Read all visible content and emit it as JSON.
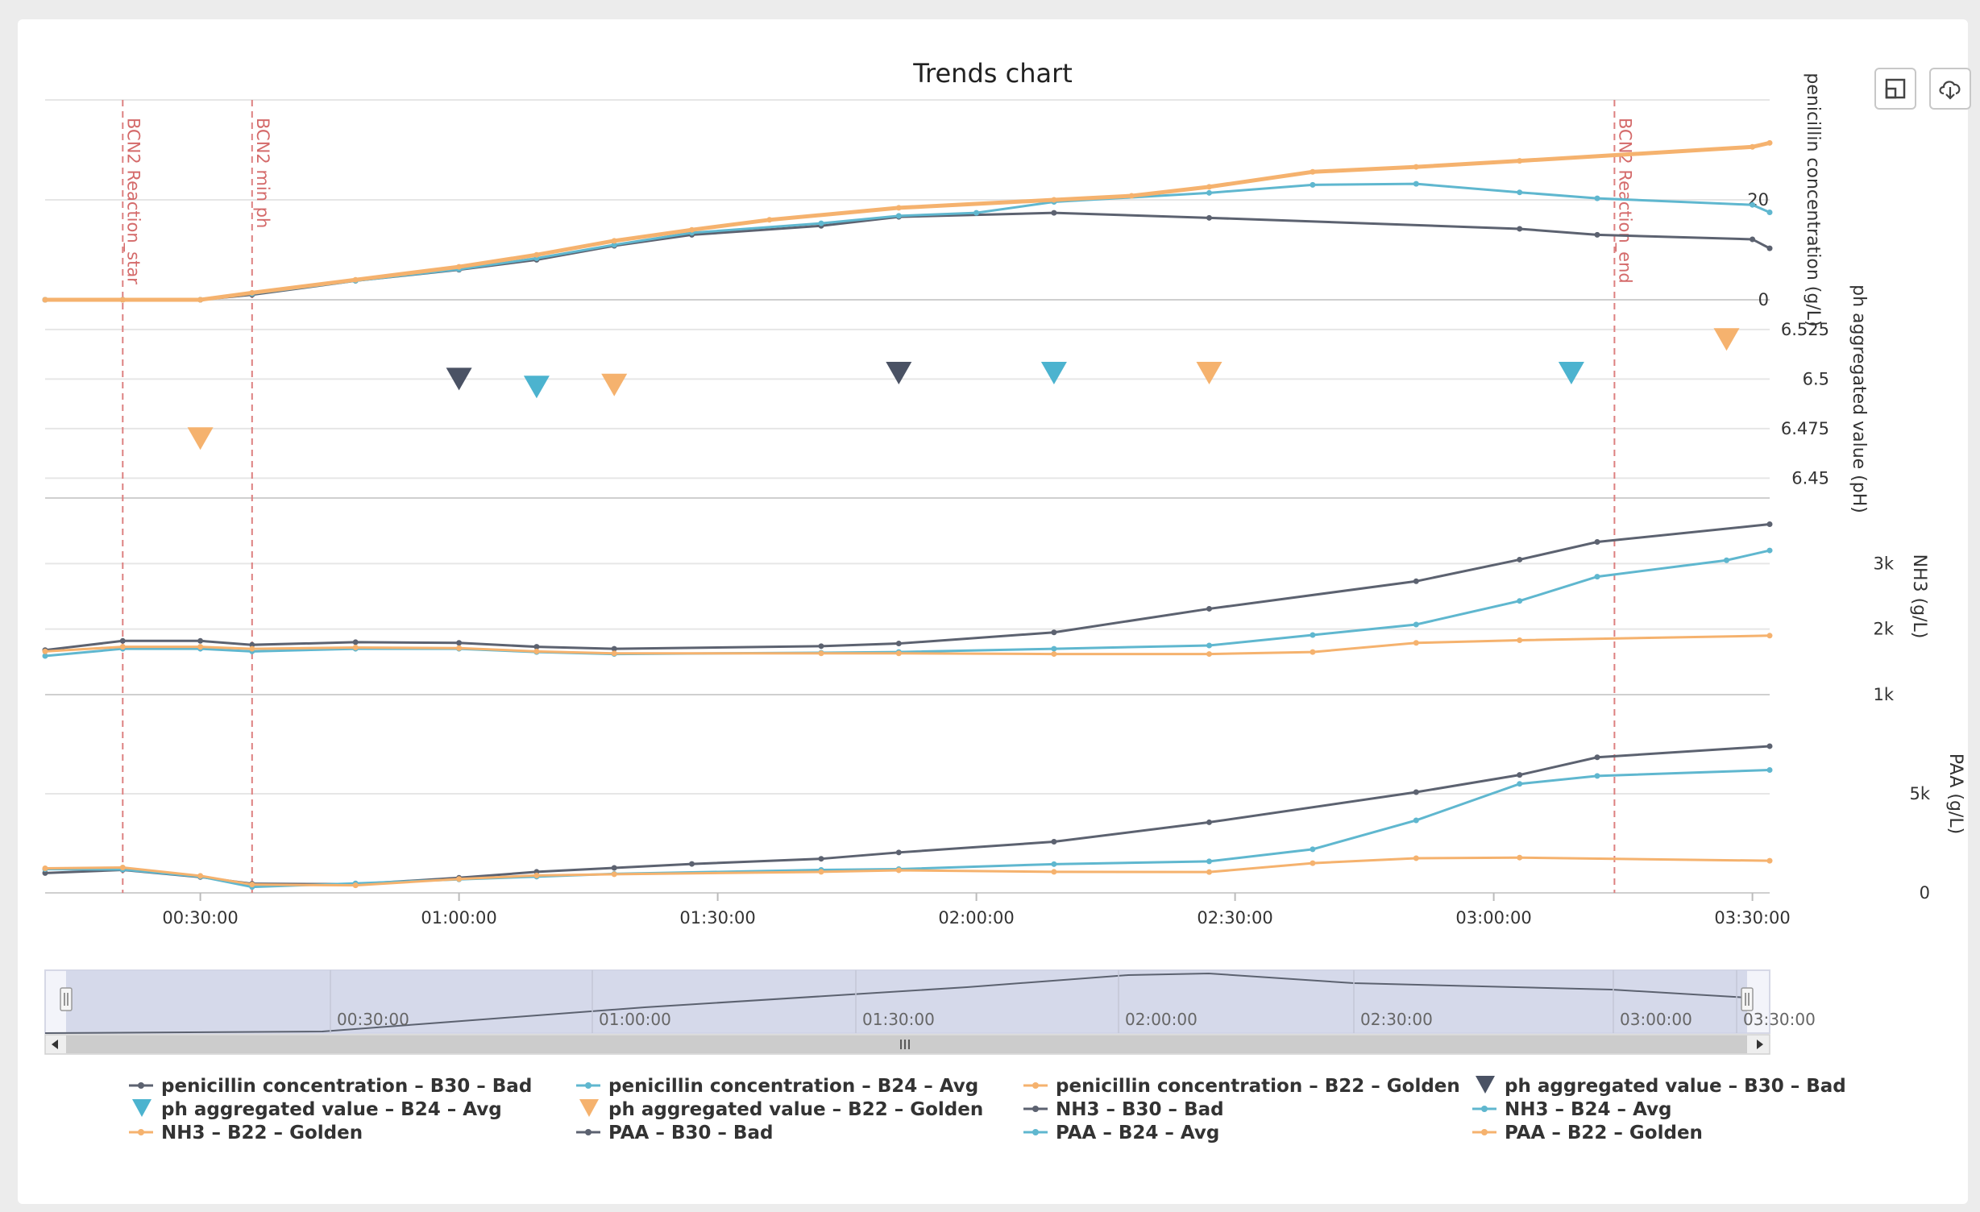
{
  "chart_data": {
    "type": "line",
    "title": "Trends chart",
    "x_range": [
      "00:12:00",
      "03:32:00"
    ],
    "x_ticks": [
      "00:30:00",
      "01:00:00",
      "01:30:00",
      "02:00:00",
      "02:30:00",
      "03:00:00",
      "03:30:00"
    ],
    "plot_bands": [
      {
        "label": "BCN2 Reaction_star",
        "x": "00:21:00"
      },
      {
        "label": "BCN2 min ph",
        "x": "00:36:00"
      },
      {
        "label": "BCN2 Reaction_end",
        "x": "03:14:00"
      }
    ],
    "panes": [
      {
        "id": "pen",
        "ylabel": "penicillin concentration (g/L)",
        "ylim": [
          0,
          40
        ],
        "ticks": [
          {
            "v": 0,
            "label": "0"
          },
          {
            "v": 20,
            "label": "20"
          }
        ]
      },
      {
        "id": "ph",
        "ylabel": "ph aggregated value (pH)",
        "ylim": [
          6.44,
          6.54
        ],
        "ticks": [
          {
            "v": 6.45,
            "label": "6.45"
          },
          {
            "v": 6.475,
            "label": "6.475"
          },
          {
            "v": 6.5,
            "label": "6.5"
          },
          {
            "v": 6.525,
            "label": "6.525"
          }
        ]
      },
      {
        "id": "nh3",
        "ylabel": "NH3 (g/L)",
        "ylim": [
          1000,
          4000
        ],
        "ticks": [
          {
            "v": 1000,
            "label": "1k"
          },
          {
            "v": 2000,
            "label": "2k"
          },
          {
            "v": 3000,
            "label": "3k"
          }
        ]
      },
      {
        "id": "paa",
        "ylabel": "PAA (g/L)",
        "ylim": [
          0,
          10000
        ],
        "ticks": [
          {
            "v": 0,
            "label": "0"
          },
          {
            "v": 5000,
            "label": "5k"
          }
        ]
      }
    ],
    "series": [
      {
        "name": "penicillin concentration – B30 – Bad",
        "pane": "pen",
        "kind": "line",
        "color": "#5c6270",
        "points": [
          [
            "00:12",
            0
          ],
          [
            "00:21",
            0
          ],
          [
            "00:30",
            0
          ],
          [
            "00:36",
            1
          ],
          [
            "00:48",
            3.8
          ],
          [
            "01:00",
            6
          ],
          [
            "01:09",
            8
          ],
          [
            "01:18",
            10.8
          ],
          [
            "01:27",
            13
          ],
          [
            "01:42",
            14.8
          ],
          [
            "01:51",
            16.6
          ],
          [
            "02:09",
            17.4
          ],
          [
            "02:27",
            16.4
          ],
          [
            "03:03",
            14.2
          ],
          [
            "03:12",
            13
          ],
          [
            "03:30",
            12.1
          ],
          [
            "03:32",
            10.3
          ]
        ]
      },
      {
        "name": "penicillin concentration – B24 – Avg",
        "pane": "pen",
        "kind": "line",
        "color": "#5fb7cf",
        "points": [
          [
            "00:12",
            0
          ],
          [
            "00:21",
            0
          ],
          [
            "00:30",
            0
          ],
          [
            "00:36",
            1.2
          ],
          [
            "00:48",
            3.8
          ],
          [
            "01:00",
            6.1
          ],
          [
            "01:09",
            8.3
          ],
          [
            "01:18",
            11
          ],
          [
            "01:27",
            13.4
          ],
          [
            "01:42",
            15.3
          ],
          [
            "01:51",
            16.8
          ],
          [
            "02:00",
            17.4
          ],
          [
            "02:09",
            19.6
          ],
          [
            "02:27",
            21.4
          ],
          [
            "02:39",
            23
          ],
          [
            "02:51",
            23.2
          ],
          [
            "03:03",
            21.5
          ],
          [
            "03:12",
            20.3
          ],
          [
            "03:30",
            19
          ],
          [
            "03:32",
            17.5
          ]
        ]
      },
      {
        "name": "penicillin concentration – B22 – Golden",
        "pane": "pen",
        "kind": "line",
        "color": "#f5b26e",
        "points": [
          [
            "00:12",
            0
          ],
          [
            "00:21",
            0
          ],
          [
            "00:30",
            0
          ],
          [
            "00:36",
            1.4
          ],
          [
            "00:48",
            4
          ],
          [
            "01:00",
            6.6
          ],
          [
            "01:09",
            9
          ],
          [
            "01:18",
            11.8
          ],
          [
            "01:27",
            14
          ],
          [
            "01:36",
            16
          ],
          [
            "01:51",
            18.4
          ],
          [
            "02:09",
            20
          ],
          [
            "02:18",
            20.8
          ],
          [
            "02:27",
            22.6
          ],
          [
            "02:39",
            25.6
          ],
          [
            "02:51",
            26.6
          ],
          [
            "03:03",
            27.8
          ],
          [
            "03:30",
            30.6
          ],
          [
            "03:32",
            31.4
          ]
        ]
      },
      {
        "name": "ph aggregated value – B30 – Bad",
        "pane": "ph",
        "kind": "marker",
        "color": "#4a5264",
        "points": [
          [
            "01:00",
            6.5
          ],
          [
            "01:51",
            6.503
          ]
        ]
      },
      {
        "name": "ph aggregated value – B24 – Avg",
        "pane": "ph",
        "kind": "marker",
        "color": "#4cb3cf",
        "points": [
          [
            "01:09",
            6.496
          ],
          [
            "02:09",
            6.503
          ],
          [
            "03:09",
            6.503
          ]
        ]
      },
      {
        "name": "ph aggregated value – B22 – Golden",
        "pane": "ph",
        "kind": "marker",
        "color": "#f5b26e",
        "points": [
          [
            "00:30",
            6.47
          ],
          [
            "01:18",
            6.497
          ],
          [
            "02:27",
            6.503
          ],
          [
            "03:27",
            6.52
          ]
        ]
      },
      {
        "name": "NH3 – B30 – Bad",
        "pane": "nh3",
        "kind": "line",
        "color": "#5c6270",
        "points": [
          [
            "00:12",
            1680
          ],
          [
            "00:21",
            1820
          ],
          [
            "00:30",
            1820
          ],
          [
            "00:36",
            1760
          ],
          [
            "00:48",
            1800
          ],
          [
            "01:00",
            1790
          ],
          [
            "01:09",
            1730
          ],
          [
            "01:18",
            1700
          ],
          [
            "01:42",
            1740
          ],
          [
            "01:51",
            1780
          ],
          [
            "02:09",
            1950
          ],
          [
            "02:27",
            2310
          ],
          [
            "02:51",
            2730
          ],
          [
            "03:03",
            3060
          ],
          [
            "03:12",
            3330
          ],
          [
            "03:32",
            3600
          ]
        ]
      },
      {
        "name": "NH3 – B24 – Avg",
        "pane": "nh3",
        "kind": "line",
        "color": "#5fb7cf",
        "points": [
          [
            "00:12",
            1590
          ],
          [
            "00:21",
            1700
          ],
          [
            "00:30",
            1700
          ],
          [
            "00:36",
            1660
          ],
          [
            "00:48",
            1700
          ],
          [
            "01:00",
            1700
          ],
          [
            "01:09",
            1650
          ],
          [
            "01:18",
            1620
          ],
          [
            "01:42",
            1640
          ],
          [
            "01:51",
            1650
          ],
          [
            "02:09",
            1700
          ],
          [
            "02:27",
            1750
          ],
          [
            "02:39",
            1910
          ],
          [
            "02:51",
            2070
          ],
          [
            "03:03",
            2430
          ],
          [
            "03:12",
            2800
          ],
          [
            "03:27",
            3050
          ],
          [
            "03:32",
            3200
          ]
        ]
      },
      {
        "name": "NH3 – B22 – Golden",
        "pane": "nh3",
        "kind": "line",
        "color": "#f5b26e",
        "points": [
          [
            "00:12",
            1660
          ],
          [
            "00:21",
            1730
          ],
          [
            "00:30",
            1730
          ],
          [
            "00:36",
            1700
          ],
          [
            "00:48",
            1720
          ],
          [
            "01:00",
            1710
          ],
          [
            "01:09",
            1660
          ],
          [
            "01:18",
            1630
          ],
          [
            "01:42",
            1630
          ],
          [
            "01:51",
            1630
          ],
          [
            "02:09",
            1620
          ],
          [
            "02:27",
            1620
          ],
          [
            "02:39",
            1650
          ],
          [
            "02:51",
            1790
          ],
          [
            "03:03",
            1830
          ],
          [
            "03:32",
            1900
          ]
        ]
      },
      {
        "name": "PAA – B30 – Bad",
        "pane": "paa",
        "kind": "line",
        "color": "#5c6270",
        "points": [
          [
            "00:12",
            1000
          ],
          [
            "00:21",
            1160
          ],
          [
            "00:30",
            800
          ],
          [
            "00:36",
            460
          ],
          [
            "00:48",
            440
          ],
          [
            "01:00",
            760
          ],
          [
            "01:09",
            1060
          ],
          [
            "01:18",
            1260
          ],
          [
            "01:27",
            1460
          ],
          [
            "01:42",
            1720
          ],
          [
            "01:51",
            2040
          ],
          [
            "02:09",
            2580
          ],
          [
            "02:27",
            3560
          ],
          [
            "02:51",
            5080
          ],
          [
            "03:03",
            5950
          ],
          [
            "03:12",
            6840
          ],
          [
            "03:32",
            7400
          ]
        ]
      },
      {
        "name": "PAA – B24 – Avg",
        "pane": "paa",
        "kind": "line",
        "color": "#5fb7cf",
        "points": [
          [
            "00:12",
            1200
          ],
          [
            "00:21",
            1180
          ],
          [
            "00:30",
            820
          ],
          [
            "00:36",
            300
          ],
          [
            "00:48",
            480
          ],
          [
            "01:00",
            680
          ],
          [
            "01:09",
            820
          ],
          [
            "01:18",
            960
          ],
          [
            "01:42",
            1160
          ],
          [
            "01:51",
            1200
          ],
          [
            "02:09",
            1450
          ],
          [
            "02:27",
            1590
          ],
          [
            "02:39",
            2200
          ],
          [
            "02:51",
            3660
          ],
          [
            "03:03",
            5500
          ],
          [
            "03:12",
            5900
          ],
          [
            "03:32",
            6200
          ]
        ]
      },
      {
        "name": "PAA – B22 – Golden",
        "pane": "paa",
        "kind": "line",
        "color": "#f5b26e",
        "points": [
          [
            "00:12",
            1240
          ],
          [
            "00:21",
            1280
          ],
          [
            "00:30",
            860
          ],
          [
            "00:36",
            420
          ],
          [
            "00:48",
            380
          ],
          [
            "01:00",
            700
          ],
          [
            "01:09",
            880
          ],
          [
            "01:18",
            940
          ],
          [
            "01:42",
            1060
          ],
          [
            "01:51",
            1140
          ],
          [
            "02:09",
            1060
          ],
          [
            "02:27",
            1050
          ],
          [
            "02:39",
            1500
          ],
          [
            "02:51",
            1750
          ],
          [
            "03:03",
            1780
          ],
          [
            "03:32",
            1620
          ]
        ]
      }
    ],
    "navigator": {
      "ticks": [
        "00:30:00",
        "01:00:00",
        "01:30:00",
        "02:00:00",
        "02:30:00",
        "03:00:00",
        "03:30:00"
      ]
    },
    "legend_position": "bottom"
  },
  "toolbar": {
    "icons": [
      "expand-icon",
      "download-icon"
    ]
  }
}
